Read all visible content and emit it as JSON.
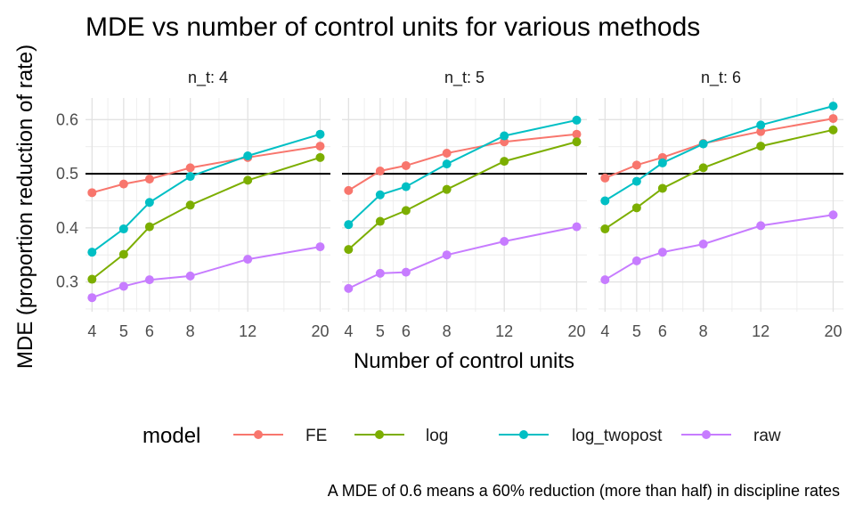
{
  "chart_data": {
    "type": "line",
    "title": "MDE vs number of control units for various methods",
    "xlabel": "Number of control units",
    "ylabel": "MDE (proportion reduction of rate)",
    "caption": "A MDE of 0.6 means a 60% reduction (more than half) in discipline rates",
    "x_scale": "log",
    "x_ticks": [
      4,
      5,
      6,
      8,
      12,
      20
    ],
    "x_tick_labels": [
      "4",
      "5",
      "6",
      "8",
      "12",
      "20"
    ],
    "xlim": [
      3.82,
      21.5
    ],
    "y_ticks": [
      0.3,
      0.4,
      0.5,
      0.6
    ],
    "y_tick_labels": [
      "0.3",
      "0.4",
      "0.5",
      "0.6"
    ],
    "ylim": [
      0.245,
      0.64
    ],
    "hline": 0.5,
    "grid": true,
    "legend": {
      "title": "model",
      "position": "bottom",
      "entries": [
        "FE",
        "log",
        "log_twopost",
        "raw"
      ]
    },
    "colors": {
      "FE": "#F8766D",
      "log": "#7CAE00",
      "log_twopost": "#00BFC4",
      "raw": "#C77CFF"
    },
    "x": [
      4,
      5,
      6,
      8,
      12,
      20
    ],
    "panels": [
      {
        "strip": "n_t: 4",
        "series": [
          {
            "name": "FE",
            "values": [
              0.465,
              0.481,
              0.49,
              0.511,
              0.53,
              0.551
            ]
          },
          {
            "name": "log",
            "values": [
              0.305,
              0.351,
              0.402,
              0.442,
              0.488,
              0.53
            ]
          },
          {
            "name": "log_twopost",
            "values": [
              0.355,
              0.398,
              0.447,
              0.495,
              0.533,
              0.573
            ]
          },
          {
            "name": "raw",
            "values": [
              0.271,
              0.292,
              0.304,
              0.311,
              0.342,
              0.365
            ]
          }
        ]
      },
      {
        "strip": "n_t: 5",
        "series": [
          {
            "name": "FE",
            "values": [
              0.469,
              0.505,
              0.515,
              0.538,
              0.559,
              0.573
            ]
          },
          {
            "name": "log",
            "values": [
              0.36,
              0.412,
              0.432,
              0.471,
              0.523,
              0.559
            ]
          },
          {
            "name": "log_twopost",
            "values": [
              0.406,
              0.461,
              0.476,
              0.518,
              0.57,
              0.599
            ]
          },
          {
            "name": "raw",
            "values": [
              0.288,
              0.316,
              0.318,
              0.35,
              0.375,
              0.402
            ]
          }
        ]
      },
      {
        "strip": "n_t: 6",
        "series": [
          {
            "name": "FE",
            "values": [
              0.492,
              0.516,
              0.53,
              0.556,
              0.578,
              0.602
            ]
          },
          {
            "name": "log",
            "values": [
              0.398,
              0.437,
              0.473,
              0.511,
              0.551,
              0.581
            ]
          },
          {
            "name": "log_twopost",
            "values": [
              0.45,
              0.486,
              0.52,
              0.555,
              0.59,
              0.625
            ]
          },
          {
            "name": "raw",
            "values": [
              0.304,
              0.339,
              0.355,
              0.37,
              0.404,
              0.424
            ]
          }
        ]
      }
    ]
  }
}
